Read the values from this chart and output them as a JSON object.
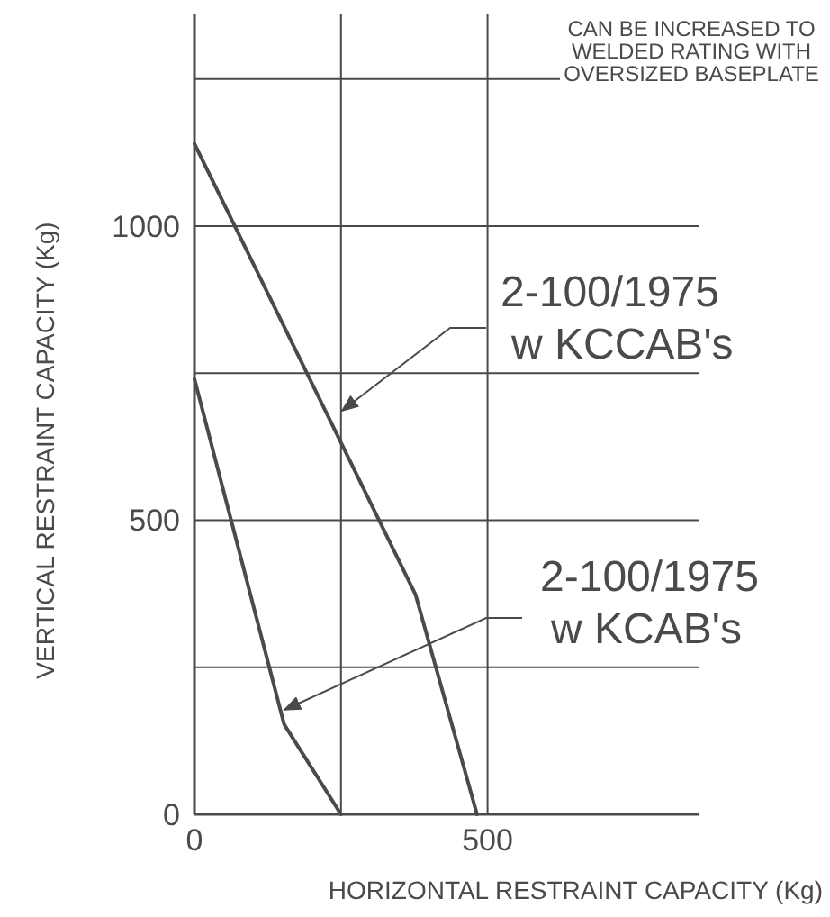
{
  "chart_data": {
    "type": "line",
    "xlabel": "HORIZONTAL RESTRAINT CAPACITY (Kg)",
    "ylabel": "VERTICAL RESTRAINT CAPACITY (Kg)",
    "annotations": [
      "CAN BE INCREASED TO WELDED RATING WITH OVERSIZED BASEPLATE"
    ],
    "xlim": [
      0,
      860
    ],
    "ylim": [
      0,
      1360
    ],
    "xticks": [
      0,
      {
        "value": 250,
        "label": null
      },
      500
    ],
    "yticks": [
      0,
      {
        "value": 250,
        "label": null
      },
      500,
      {
        "value": 750,
        "label": null
      },
      1000,
      {
        "value": 1250,
        "label": null
      }
    ],
    "grid": true,
    "marker": "none",
    "line_style": "solid",
    "series": [
      {
        "name": "2-100/1975 w KCCAB's",
        "color": "#4a4a4a",
        "x": [
          0,
          377,
          482
        ],
        "values": [
          1140,
          374,
          0
        ]
      },
      {
        "name": "2-100/1975 w KCAB's",
        "color": "#4a4a4a",
        "x": [
          0,
          153,
          250
        ],
        "values": [
          740,
          153,
          0
        ]
      }
    ]
  }
}
